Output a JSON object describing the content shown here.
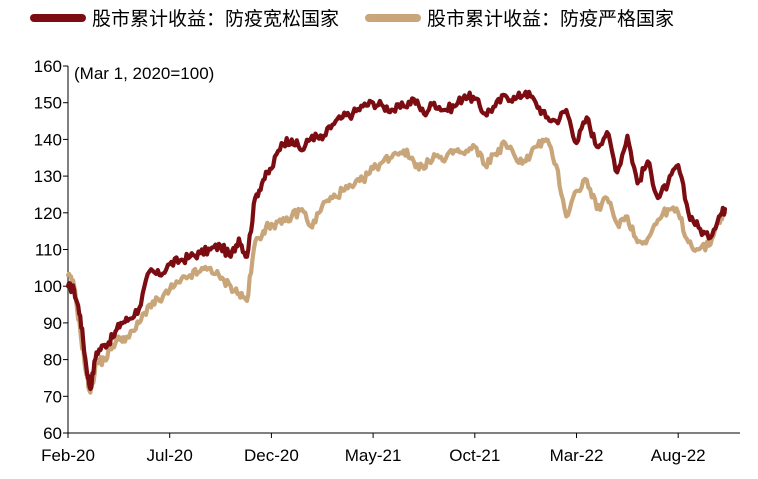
{
  "chart_data": {
    "type": "line",
    "note": "(Mar 1, 2020=100)",
    "ylim": [
      60,
      160
    ],
    "yticks": [
      60,
      70,
      80,
      90,
      100,
      110,
      120,
      130,
      140,
      150,
      160
    ],
    "xticks": [
      "Feb-20",
      "Jul-20",
      "Dec-20",
      "May-21",
      "Oct-21",
      "Mar-22",
      "Aug-22"
    ],
    "x_index_range": [
      0,
      32
    ],
    "grid": false,
    "legend_position": "top",
    "series": [
      {
        "name": "股市累计收益：防疫宽松国家",
        "color": "#7b0d12",
        "x": [
          0,
          0.3,
          0.6,
          0.9,
          1.1,
          1.4,
          1.8,
          2.2,
          2.6,
          3.0,
          3.5,
          4.0,
          4.5,
          5.0,
          5.5,
          6.0,
          6.5,
          7.0,
          7.5,
          8.0,
          8.4,
          8.8,
          9.2,
          9.6,
          10.0,
          10.5,
          11.0,
          11.5,
          12.0,
          12.5,
          13.0,
          13.5,
          14.0,
          14.5,
          15.0,
          15.5,
          16.0,
          16.5,
          17.0,
          17.5,
          18.0,
          18.5,
          19.0,
          19.5,
          20.0,
          20.5,
          21.0,
          21.5,
          22.0,
          22.5,
          23.0,
          23.5,
          24.0,
          24.5,
          25.0,
          25.5,
          26.0,
          26.5,
          27.0,
          27.5,
          28.0,
          28.5,
          29.0,
          29.5,
          30.0,
          30.5,
          31.0,
          31.5,
          32.0,
          32.3
        ],
        "values": [
          100,
          99,
          92,
          78,
          72,
          82,
          84,
          86,
          90,
          91,
          94,
          104,
          103,
          106,
          107,
          108,
          109,
          110,
          111,
          108,
          113,
          108,
          124,
          129,
          132,
          139,
          140,
          137,
          141,
          140,
          144,
          146,
          147,
          149,
          150,
          149,
          148,
          149,
          151,
          147,
          150,
          148,
          149,
          152,
          151,
          147,
          149,
          152,
          151,
          153,
          150,
          146,
          145,
          148,
          139,
          146,
          138,
          142,
          131,
          141,
          128,
          134,
          124,
          128,
          133,
          120,
          116,
          113,
          119,
          121
        ]
      },
      {
        "name": "股市累计收益：防疫严格国家",
        "color": "#c9a57a",
        "x": [
          0,
          0.3,
          0.6,
          0.9,
          1.1,
          1.4,
          1.8,
          2.2,
          2.6,
          3.0,
          3.5,
          4.0,
          4.5,
          5.0,
          5.5,
          6.0,
          6.5,
          7.0,
          7.5,
          8.0,
          8.4,
          8.8,
          9.2,
          9.6,
          10.0,
          10.5,
          11.0,
          11.5,
          12.0,
          12.5,
          13.0,
          13.5,
          14.0,
          14.5,
          15.0,
          15.5,
          16.0,
          16.5,
          17.0,
          17.5,
          18.0,
          18.5,
          19.0,
          19.5,
          20.0,
          20.5,
          21.0,
          21.5,
          22.0,
          22.5,
          23.0,
          23.5,
          24.0,
          24.5,
          25.0,
          25.5,
          26.0,
          26.5,
          27.0,
          27.5,
          28.0,
          28.5,
          29.0,
          29.5,
          30.0,
          30.5,
          31.0,
          31.5,
          32.0,
          32.3
        ],
        "values": [
          103,
          100,
          88,
          76,
          71,
          79,
          80,
          84,
          86,
          86,
          90,
          95,
          96,
          99,
          101,
          103,
          104,
          105,
          102,
          100,
          98,
          96,
          112,
          115,
          117,
          117,
          119,
          121,
          116,
          122,
          124,
          126,
          127,
          129,
          132,
          134,
          136,
          137,
          134,
          132,
          136,
          134,
          137,
          136,
          138,
          133,
          136,
          139,
          135,
          134,
          138,
          140,
          133,
          119,
          126,
          129,
          121,
          124,
          117,
          119,
          112,
          113,
          118,
          121,
          120,
          112,
          110,
          111,
          118,
          120
        ]
      }
    ]
  }
}
